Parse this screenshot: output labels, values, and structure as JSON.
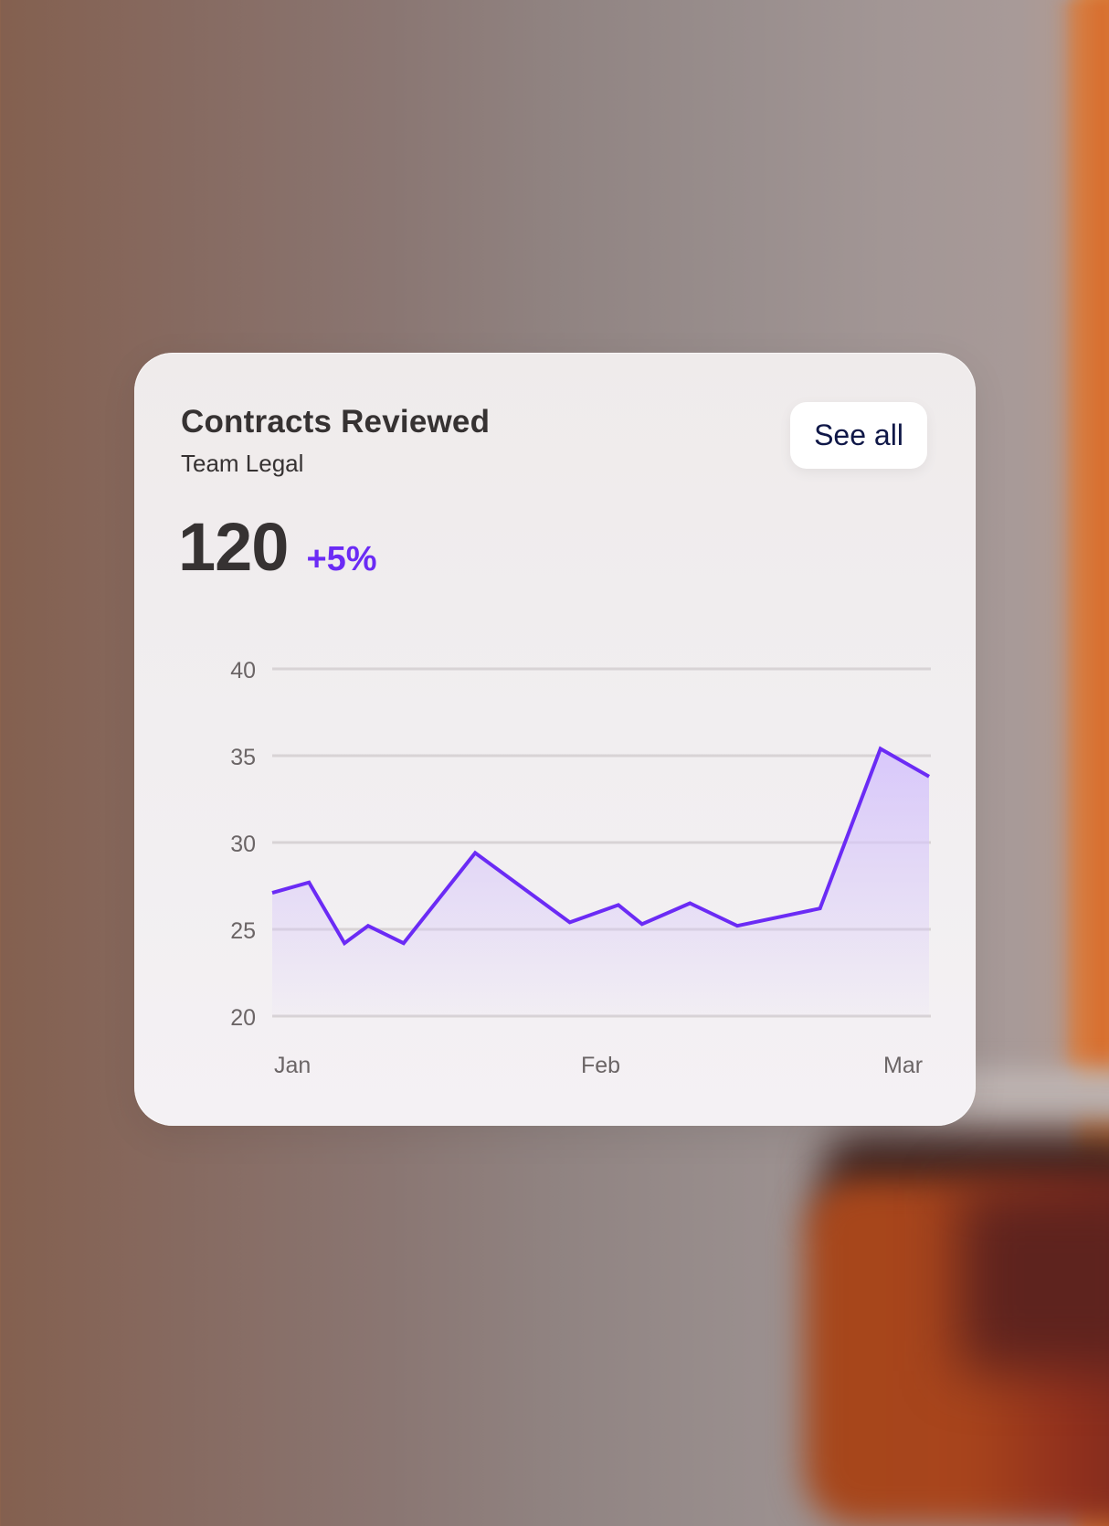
{
  "card": {
    "title": "Contracts Reviewed",
    "subtitle": "Team Legal",
    "metric_value": "120",
    "metric_change": "+5%",
    "see_all_label": "See all"
  },
  "colors": {
    "accent": "#6b2bf5",
    "text_primary": "#363232",
    "text_muted": "#6b6566",
    "button_text": "#0f1747",
    "gridline": "#d8d3d5",
    "area_fill": "#d7c6fb"
  },
  "chart_data": {
    "type": "area",
    "title": "Contracts Reviewed",
    "subtitle": "Team Legal",
    "xlabel": "",
    "ylabel": "",
    "ylim": [
      20,
      40
    ],
    "yticks": [
      40,
      35,
      30,
      25,
      20
    ],
    "ytick_labels": [
      "40",
      "35",
      "30",
      "25",
      "20"
    ],
    "xtick_labels": [
      "Jan",
      "Feb",
      "Mar"
    ],
    "grid": true,
    "legend": null,
    "series": [
      {
        "name": "Contracts Reviewed",
        "x_pos": [
          0.0,
          0.056,
          0.11,
          0.146,
          0.2,
          0.309,
          0.453,
          0.527,
          0.563,
          0.636,
          0.708,
          0.834,
          0.926,
          1.0
        ],
        "values": [
          27.1,
          27.7,
          24.2,
          25.2,
          24.2,
          29.4,
          25.4,
          26.4,
          25.3,
          26.5,
          25.2,
          26.2,
          35.4,
          33.8
        ]
      }
    ]
  }
}
